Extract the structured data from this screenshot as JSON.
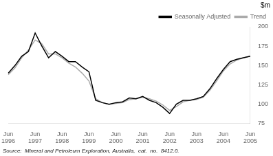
{
  "chart_data": {
    "type": "line",
    "ylabel": "$m",
    "source": "Source:  Mineral and Petroleum Exploration, Australia,  cat.  no.  8412.0.",
    "categories": [
      "Jun\n1996",
      null,
      null,
      null,
      "Jun\n1997",
      null,
      null,
      null,
      "Jun\n1998",
      null,
      null,
      null,
      "Jun\n1999",
      null,
      null,
      null,
      "Jun\n2000",
      null,
      null,
      null,
      "Jun\n2001",
      null,
      null,
      null,
      "Jun\n2002",
      null,
      null,
      null,
      "Jun\n2003",
      null,
      null,
      null,
      "Jun\n2004",
      null,
      null,
      null,
      "Jun\n2005"
    ],
    "series": [
      {
        "name": "Seasonally Adjusted",
        "color": "#000000",
        "values": [
          140,
          150,
          162,
          168,
          192,
          175,
          160,
          168,
          162,
          155,
          155,
          148,
          142,
          105,
          102,
          100,
          102,
          103,
          108,
          107,
          110,
          105,
          102,
          96,
          88,
          100,
          105,
          105,
          107,
          110,
          120,
          133,
          145,
          155,
          158,
          160,
          162
        ]
      },
      {
        "name": "Trend",
        "color": "#aaaaaa",
        "values": [
          138,
          147,
          160,
          170,
          183,
          178,
          165,
          165,
          160,
          153,
          148,
          140,
          130,
          107,
          102,
          100,
          101,
          102,
          106,
          107,
          109,
          107,
          104,
          99,
          92,
          97,
          103,
          105,
          106,
          109,
          118,
          130,
          143,
          152,
          157,
          160,
          162
        ]
      }
    ],
    "ylim": [
      75,
      200
    ],
    "yticks": [
      75,
      100,
      125,
      150,
      175,
      200
    ],
    "grid": false,
    "legend": "upper right"
  }
}
